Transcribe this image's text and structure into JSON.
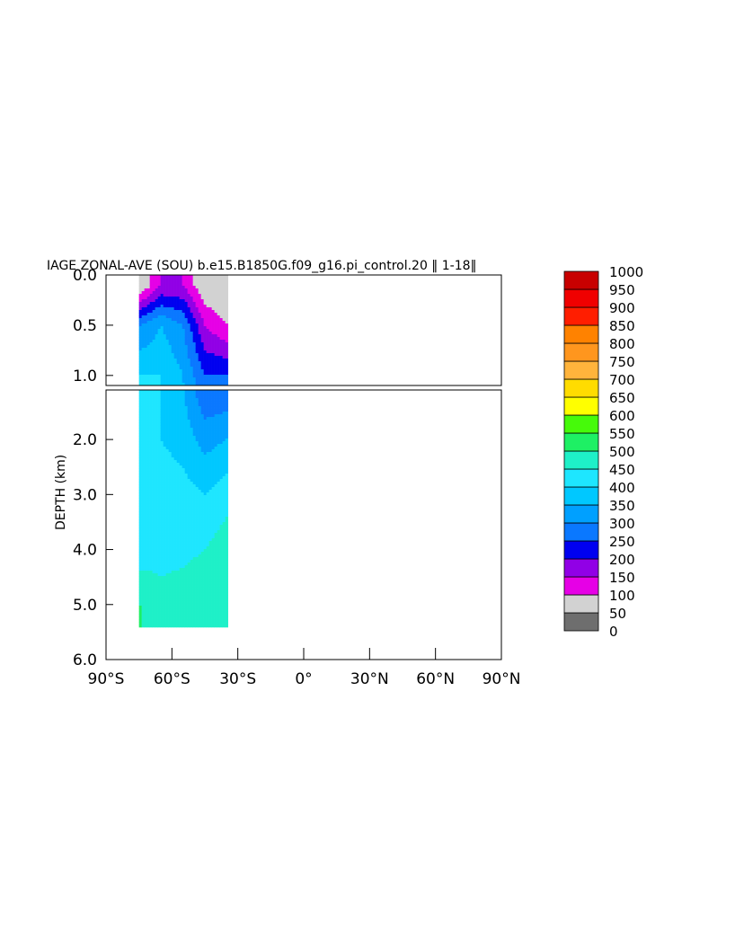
{
  "chart_data": {
    "type": "heatmap",
    "title": "IAGE ZONAL-AVE (SOU) b.e15.B1850G.f09_g16.pi_control.20 ‖ 1-18‖",
    "ylabel": "DEPTH (km)",
    "xlabel": "",
    "x_ticks": [
      "90°S",
      "60°S",
      "30°S",
      "0°",
      "30°N",
      "60°N",
      "90°N"
    ],
    "x_tick_values": [
      -90,
      -60,
      -30,
      0,
      30,
      60,
      90
    ],
    "xlim": [
      -90,
      90
    ],
    "upper_panel": {
      "ylim": [
        0.0,
        1.1
      ],
      "y_ticks": [
        "0.0",
        "0.5",
        "1.0"
      ],
      "y_tick_values": [
        0.0,
        0.5,
        1.0
      ]
    },
    "lower_panel": {
      "ylim": [
        1.1,
        6.0
      ],
      "y_ticks": [
        "2.0",
        "3.0",
        "4.0",
        "5.0",
        "6.0"
      ],
      "y_tick_values": [
        2.0,
        3.0,
        4.0,
        5.0,
        6.0
      ]
    },
    "colorbar": {
      "labels": [
        "1000",
        "950",
        "900",
        "850",
        "800",
        "750",
        "700",
        "650",
        "600",
        "550",
        "500",
        "450",
        "400",
        "350",
        "300",
        "250",
        "200",
        "150",
        "100",
        "50",
        "0"
      ],
      "levels": [
        0,
        50,
        100,
        150,
        200,
        250,
        300,
        350,
        400,
        450,
        500,
        550,
        600,
        650,
        700,
        750,
        800,
        850,
        900,
        950,
        1000
      ],
      "colors": [
        "#6e6e6e",
        "#d2d2d2",
        "#e600e6",
        "#9100e6",
        "#0000f0",
        "#0a78ff",
        "#00a0ff",
        "#00c8ff",
        "#1ee6ff",
        "#1ef0c8",
        "#1ef064",
        "#46fa0a",
        "#ffff00",
        "#ffdc00",
        "#ffb43c",
        "#ff961e",
        "#ff8200",
        "#ff1e00",
        "#f00000",
        "#c80000"
      ]
    },
    "data_extent": {
      "lat_range": [
        -75,
        -35
      ],
      "max_depth_km": 5.4
    },
    "depth_bands_at_lat": {
      "lat": [
        -74,
        -65,
        -55,
        -45,
        -35
      ],
      "note": "values in data units, age (years) at depths [0.1,0.5,1.0,2.0,3.0,4.0,5.0] km",
      "depth_km": [
        0.1,
        0.5,
        1.0,
        2.0,
        3.0,
        4.0,
        5.0
      ],
      "age": [
        [
          50,
          300,
          400,
          400,
          400,
          420,
          500
        ],
        [
          150,
          350,
          400,
          400,
          430,
          440,
          460
        ],
        [
          150,
          300,
          350,
          380,
          420,
          440,
          470
        ],
        [
          50,
          150,
          250,
          330,
          400,
          450,
          480
        ],
        [
          50,
          100,
          250,
          350,
          430,
          480,
          500
        ]
      ]
    }
  }
}
